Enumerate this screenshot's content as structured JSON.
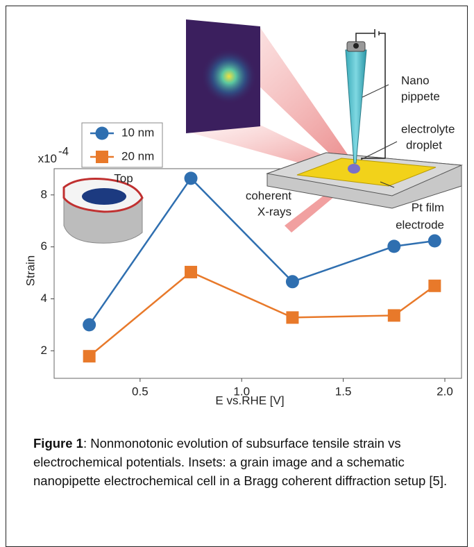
{
  "chart_data": {
    "type": "line",
    "x_multiplier": {
      "base": "x10",
      "exponent": "-4"
    },
    "xlabel": "E vs.RHE [V]",
    "ylabel": "Strain",
    "x": [
      0.25,
      0.75,
      1.25,
      1.75,
      1.95
    ],
    "series": [
      {
        "name": "10 nm",
        "color": "#2f6fb0",
        "marker": "circle",
        "values": [
          3.0,
          8.64,
          4.66,
          6.02,
          6.23
        ]
      },
      {
        "name": "20 nm",
        "color": "#e8792a",
        "marker": "square",
        "values": [
          1.79,
          5.03,
          3.28,
          3.36,
          4.5
        ]
      }
    ],
    "xlim": [
      0.077,
      2.082
    ],
    "ylim": [
      0.94,
      9.01
    ],
    "xticks": [
      0.5,
      {
        "value": 1,
        "label": "1.0"
      },
      1.5,
      {
        "value": 2,
        "label": "2.0"
      }
    ],
    "yticks": [
      2,
      4,
      6,
      8
    ],
    "annotations": [
      [
        "Top"
      ],
      [
        "Nano",
        "pippete"
      ],
      [
        "electrolyte",
        "droplet"
      ],
      [
        "coherent",
        "X-rays"
      ],
      [
        "Pt film",
        "electrode"
      ]
    ]
  },
  "caption": {
    "label": "Figure 1",
    "text": ": Nonmonotonic evolution of subsurface tensile strain vs electrochemical potentials. Insets: a grain image and a schematic nanopipette electrochemical cell in a Bragg coherent diffraction setup [5]."
  }
}
